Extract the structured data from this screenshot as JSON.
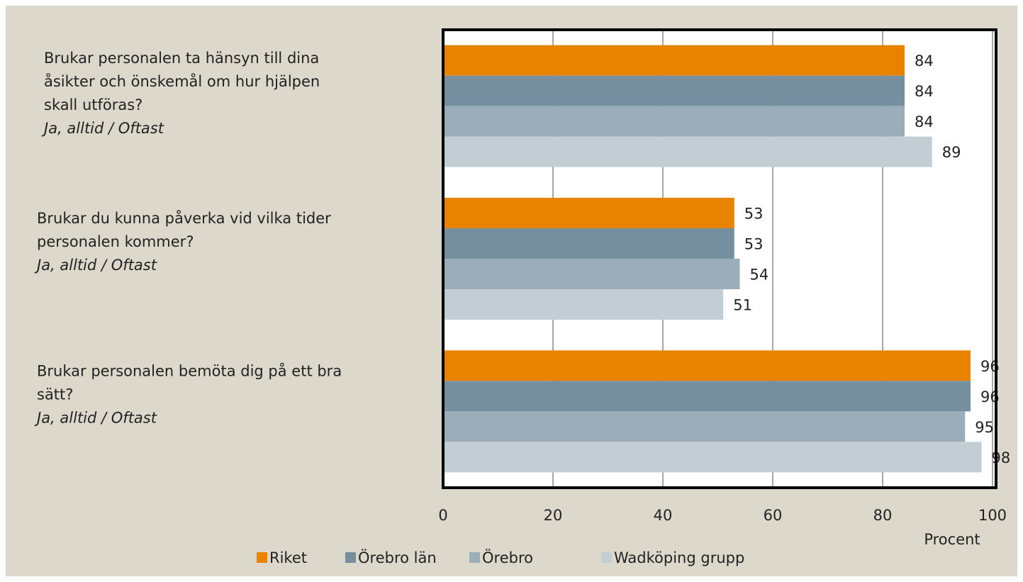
{
  "chart_data": {
    "type": "bar",
    "orientation": "horizontal",
    "categories": [
      [
        "Brukar personalen ta hänsyn till dina",
        "åsikter och önskemål om hur hjälpen",
        "skall utföras?"
      ],
      [
        "Brukar du kunna påverka vid vilka tider",
        "personalen kommer?"
      ],
      [
        "Brukar personalen bemöta dig på ett bra",
        "sätt?"
      ]
    ],
    "category_subtitles": [
      "Ja, alltid / Oftast",
      "Ja, alltid / Oftast",
      "Ja, alltid / Oftast"
    ],
    "series": [
      {
        "name": "Riket",
        "color": "#e88300",
        "values": [
          84,
          53,
          96
        ]
      },
      {
        "name": "Örebro län",
        "color": "#758f9e",
        "values": [
          84,
          53,
          96
        ]
      },
      {
        "name": "Örebro",
        "color": "#9aadb8",
        "values": [
          84,
          54,
          95
        ]
      },
      {
        "name": "Wadköping grupp",
        "color": "#c3cdd4",
        "values": [
          89,
          51,
          98
        ]
      }
    ],
    "xlabel": "Procent",
    "xlim": [
      0,
      100
    ],
    "xticks": [
      0,
      20,
      40,
      60,
      80,
      100
    ],
    "grid": true,
    "legend": "bottom"
  }
}
